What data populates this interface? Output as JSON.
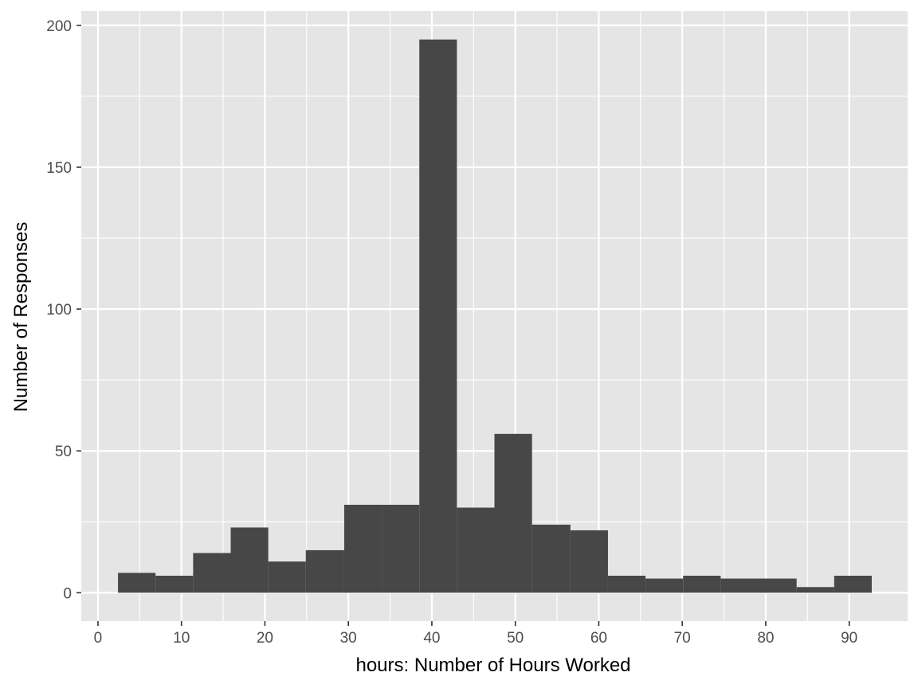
{
  "chart_data": {
    "type": "bar",
    "subtype": "histogram",
    "title": "",
    "xlabel": "hours: Number of Hours Worked",
    "ylabel": "Number of Responses",
    "xlim": [
      -2,
      97
    ],
    "ylim": [
      -10,
      205
    ],
    "x_ticks": [
      0,
      10,
      20,
      30,
      40,
      50,
      60,
      70,
      80,
      90
    ],
    "y_ticks": [
      0,
      50,
      100,
      150,
      200
    ],
    "bins": [
      {
        "x0": 2.4,
        "x1": 6.9,
        "value": 7
      },
      {
        "x0": 6.9,
        "x1": 11.4,
        "value": 6
      },
      {
        "x0": 11.4,
        "x1": 15.9,
        "value": 14
      },
      {
        "x0": 15.9,
        "x1": 20.4,
        "value": 23
      },
      {
        "x0": 20.4,
        "x1": 24.9,
        "value": 11
      },
      {
        "x0": 24.9,
        "x1": 29.5,
        "value": 15
      },
      {
        "x0": 29.5,
        "x1": 34.0,
        "value": 31
      },
      {
        "x0": 34.0,
        "x1": 38.5,
        "value": 31
      },
      {
        "x0": 38.5,
        "x1": 43.0,
        "value": 195
      },
      {
        "x0": 43.0,
        "x1": 47.5,
        "value": 30
      },
      {
        "x0": 47.5,
        "x1": 52.0,
        "value": 56
      },
      {
        "x0": 52.0,
        "x1": 56.6,
        "value": 24
      },
      {
        "x0": 56.6,
        "x1": 61.1,
        "value": 22
      },
      {
        "x0": 61.1,
        "x1": 65.6,
        "value": 6
      },
      {
        "x0": 65.6,
        "x1": 70.1,
        "value": 5
      },
      {
        "x0": 70.1,
        "x1": 74.6,
        "value": 6
      },
      {
        "x0": 74.6,
        "x1": 79.1,
        "value": 5
      },
      {
        "x0": 79.1,
        "x1": 83.7,
        "value": 5
      },
      {
        "x0": 83.7,
        "x1": 88.2,
        "value": 2
      },
      {
        "x0": 88.2,
        "x1": 92.7,
        "value": 6
      }
    ],
    "grid": true,
    "legend": "none",
    "colors": {
      "panel_background": "#e5e5e5",
      "grid_line": "#ffffff",
      "bar_fill": "#474747",
      "tick_text": "#4d4d4d",
      "axis_title_text": "#000000"
    }
  }
}
